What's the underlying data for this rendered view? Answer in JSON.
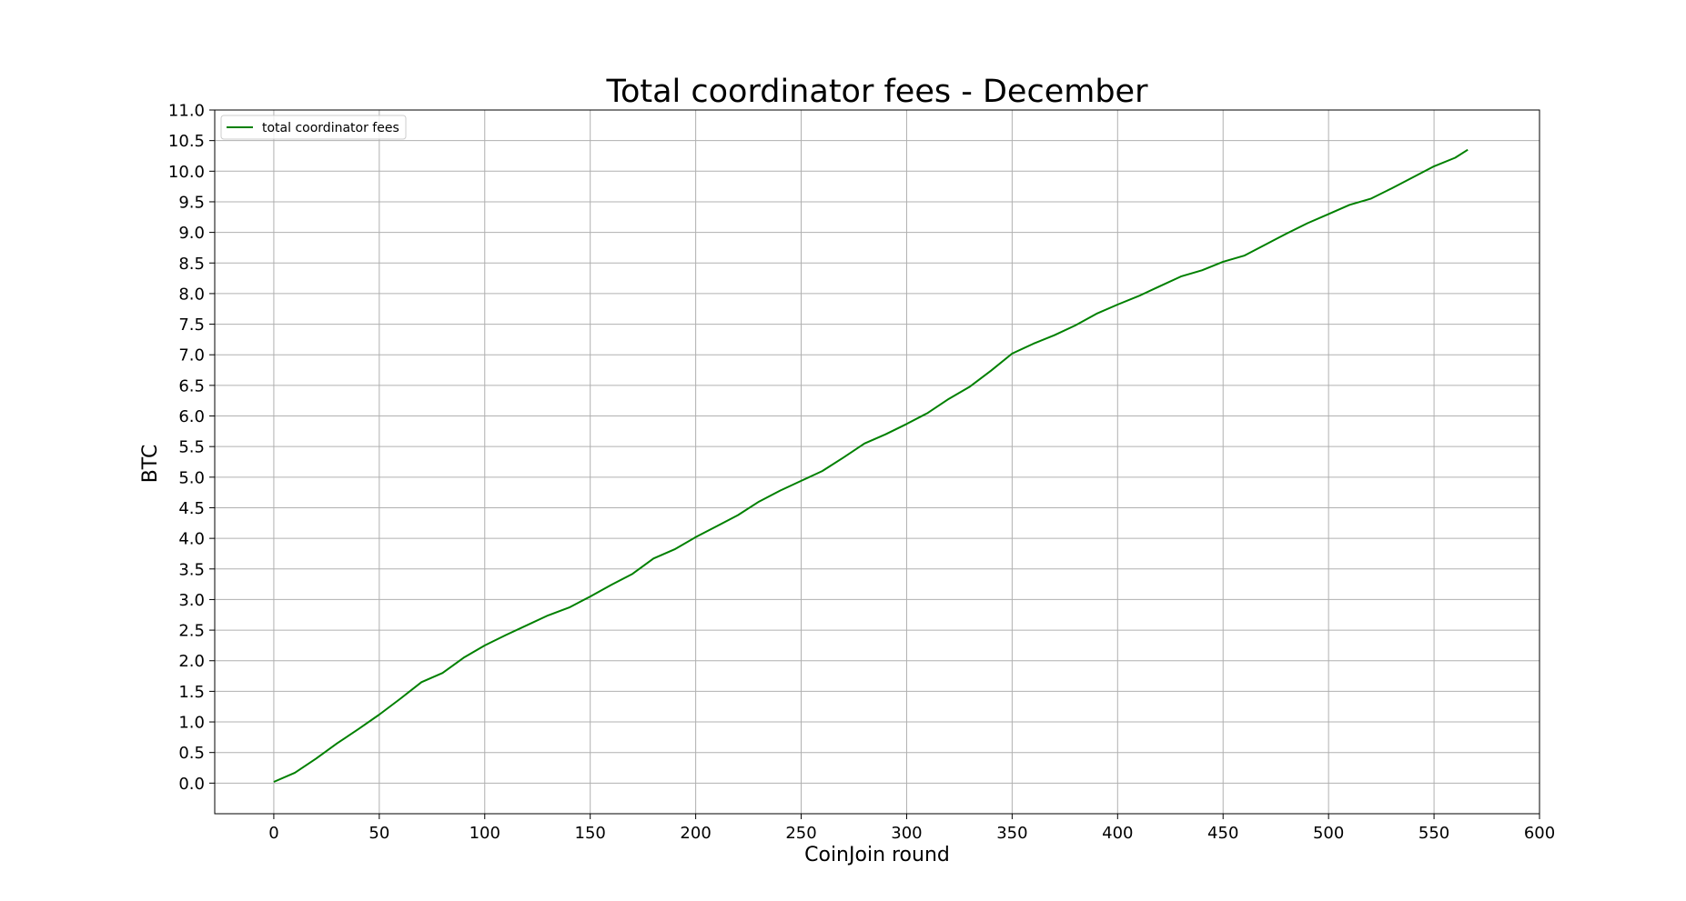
{
  "chart_data": {
    "type": "line",
    "title": "Total coordinator fees - December",
    "xlabel": "CoinJoin round",
    "ylabel": "BTC",
    "xlim": [
      -28,
      600
    ],
    "ylim": [
      -0.5,
      11.0
    ],
    "xticks": [
      0,
      50,
      100,
      150,
      200,
      250,
      300,
      350,
      400,
      450,
      500,
      550,
      600
    ],
    "yticks": [
      "0.0",
      "0.5",
      "1.0",
      "1.5",
      "2.0",
      "2.5",
      "3.0",
      "3.5",
      "4.0",
      "4.5",
      "5.0",
      "5.5",
      "6.0",
      "6.5",
      "7.0",
      "7.5",
      "8.0",
      "8.5",
      "9.0",
      "9.5",
      "10.0",
      "10.5",
      "11.0"
    ],
    "grid": true,
    "legend": {
      "placement": "top-left",
      "entries": [
        "total coordinator fees"
      ]
    },
    "series": [
      {
        "name": "total coordinator fees",
        "color": "#008000",
        "x": [
          0,
          10,
          20,
          30,
          40,
          50,
          60,
          70,
          80,
          90,
          100,
          110,
          120,
          130,
          140,
          150,
          160,
          170,
          180,
          190,
          200,
          210,
          220,
          230,
          240,
          250,
          260,
          270,
          280,
          290,
          300,
          310,
          320,
          330,
          340,
          350,
          360,
          370,
          380,
          390,
          400,
          410,
          420,
          430,
          440,
          450,
          460,
          470,
          480,
          490,
          500,
          510,
          520,
          530,
          540,
          550,
          560,
          566
        ],
        "y": [
          0.02,
          0.17,
          0.4,
          0.65,
          0.88,
          1.12,
          1.38,
          1.65,
          1.8,
          2.05,
          2.25,
          2.42,
          2.58,
          2.74,
          2.87,
          3.05,
          3.24,
          3.42,
          3.67,
          3.82,
          4.02,
          4.2,
          4.38,
          4.6,
          4.78,
          4.94,
          5.1,
          5.32,
          5.55,
          5.7,
          5.87,
          6.05,
          6.28,
          6.48,
          6.74,
          7.02,
          7.18,
          7.32,
          7.48,
          7.67,
          7.82,
          7.96,
          8.12,
          8.28,
          8.38,
          8.52,
          8.62,
          8.8,
          8.98,
          9.15,
          9.3,
          9.45,
          9.55,
          9.72,
          9.9,
          10.08,
          10.22,
          10.35
        ]
      }
    ]
  }
}
